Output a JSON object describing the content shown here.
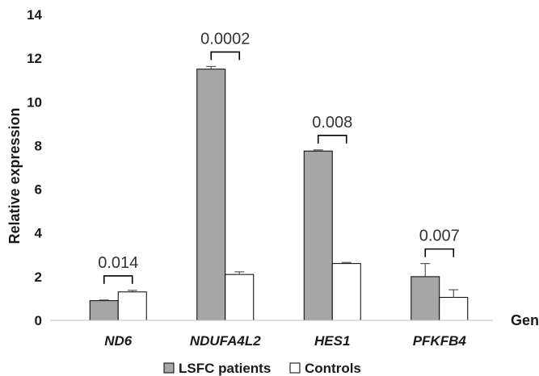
{
  "chart_data": {
    "type": "bar",
    "title": "",
    "xlabel": "Genes",
    "ylabel": "Relative expression",
    "ylim": [
      0,
      14
    ],
    "y_ticks": [
      "0",
      "2",
      "4",
      "6",
      "8",
      "10",
      "12",
      "14"
    ],
    "categories": [
      "ND6",
      "NDUFA4L2",
      "HES1",
      "PFKFB4"
    ],
    "series": [
      {
        "name": "LSFC patients",
        "color": "#a6a6a6",
        "values": [
          0.9,
          11.5,
          7.75,
          2.0
        ],
        "errors": [
          0.03,
          0.12,
          0.05,
          0.6
        ]
      },
      {
        "name": "Controls",
        "color": "#ffffff",
        "values": [
          1.3,
          2.1,
          2.6,
          1.05
        ],
        "errors": [
          0.07,
          0.12,
          0.05,
          0.35
        ]
      }
    ],
    "p_values": [
      "0.014",
      "0.0002",
      "0.008",
      "0.007"
    ],
    "legend_position": "bottom",
    "grid": false
  }
}
